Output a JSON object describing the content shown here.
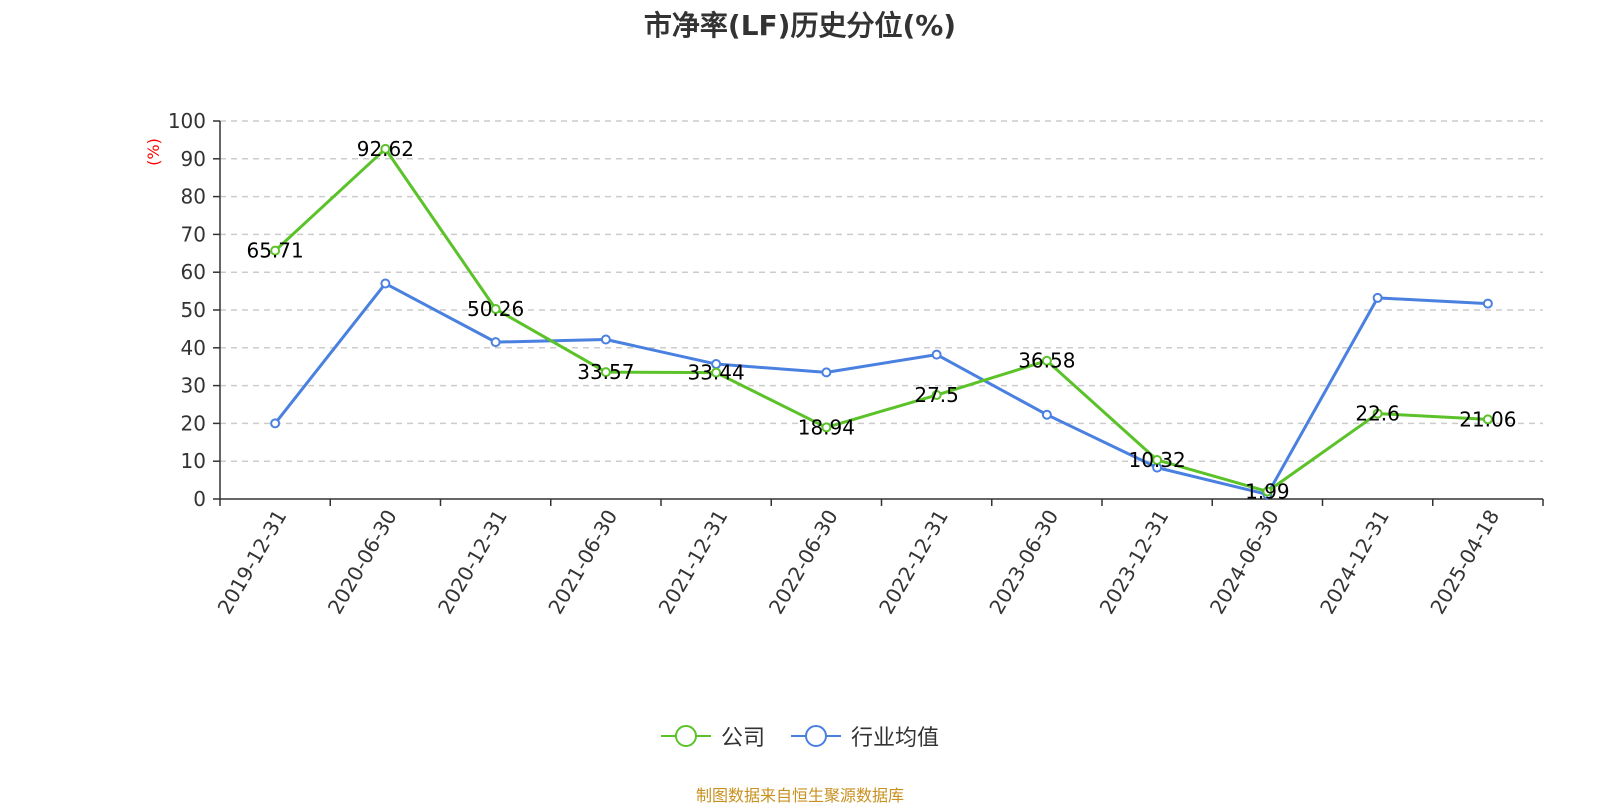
{
  "title": "市净率(LF)历史分位(%)",
  "source_note": "制图数据来自恒生聚源数据库",
  "colors": {
    "company": "#5bc229",
    "industry": "#4a80e0",
    "axis": "#333333",
    "grid": "#cccccc",
    "ylabel": "#ff0000",
    "source": "#c8901f"
  },
  "legend": {
    "company_label": "公司",
    "industry_label": "行业均值"
  },
  "chart_data": {
    "type": "line",
    "title": "市净率(LF)历史分位(%)",
    "xlabel": "",
    "ylabel": "(%)",
    "ylim": [
      0,
      100
    ],
    "yticks": [
      0,
      10,
      20,
      30,
      40,
      50,
      60,
      70,
      80,
      90,
      100
    ],
    "grid": true,
    "legend_position": "bottom",
    "categories": [
      "2019-12-31",
      "2020-06-30",
      "2020-12-31",
      "2021-06-30",
      "2021-12-31",
      "2022-06-30",
      "2022-12-31",
      "2023-06-30",
      "2023-12-31",
      "2024-06-30",
      "2024-12-31",
      "2025-04-18"
    ],
    "series": [
      {
        "name": "公司",
        "values": [
          65.71,
          92.62,
          50.26,
          33.57,
          33.44,
          18.94,
          27.5,
          36.58,
          10.32,
          1.99,
          22.6,
          21.06
        ],
        "labels": [
          "65.71",
          "92.62",
          "50.26",
          "33.57",
          "33.44",
          "18.94",
          "27.5",
          "36.58",
          "10.32",
          "1.99",
          "22.6",
          "21.06"
        ]
      },
      {
        "name": "行业均值",
        "values": [
          20,
          57,
          41.5,
          42.2,
          35.7,
          33.5,
          38.2,
          22.3,
          8.3,
          1.2,
          53.2,
          51.7
        ]
      }
    ]
  }
}
